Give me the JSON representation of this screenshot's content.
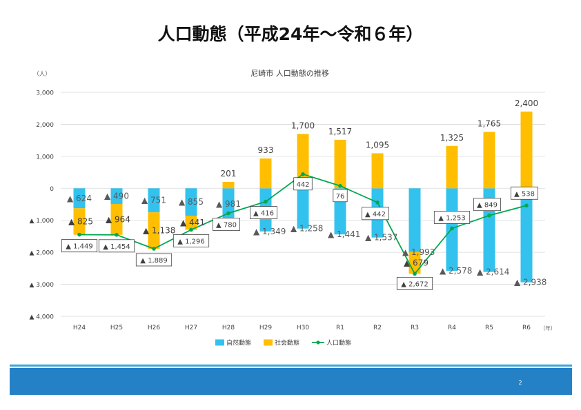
{
  "slide": {
    "title": "人口動態（平成24年～令和６年）",
    "page_number": "2"
  },
  "colors": {
    "natural": "#33c2ee",
    "social": "#ffbf00",
    "total": "#00a84f",
    "grid": "#d9d9d9",
    "footer": "#2481c6"
  },
  "chart_data": {
    "type": "bar",
    "title": "尼崎市 人口動態の推移",
    "ylabel": "（人）",
    "xlabel": "（年）",
    "ylim": [
      -4000,
      3000
    ],
    "yticks": [
      3000,
      2000,
      1000,
      0,
      -1000,
      -2000,
      -3000,
      -4000
    ],
    "ytick_labels": [
      "3,000",
      "2,000",
      "1,000",
      "0",
      "▲ 1,000",
      "▲ 2,000",
      "▲ 3,000",
      "▲ 4,000"
    ],
    "grid": true,
    "legend_position": "bottom",
    "categories": [
      "H24",
      "H25",
      "H26",
      "H27",
      "H28",
      "H29",
      "H30",
      "R1",
      "R2",
      "R3",
      "R4",
      "R5",
      "R6"
    ],
    "series": [
      {
        "name": "自然動態",
        "type": "bar",
        "values": [
          -624,
          -490,
          -751,
          -855,
          -981,
          -1349,
          -1258,
          -1441,
          -1537,
          -1993,
          -2578,
          -2614,
          -2938
        ],
        "labels": [
          "▲ 624",
          "▲ 490",
          "▲ 751",
          "▲ 855",
          "▲ 981",
          "▲ 1,349",
          "▲ 1,258",
          "▲ 1,441",
          "▲ 1,537",
          "▲ 1,993",
          "▲ 2,578",
          "▲ 2,614",
          "▲ 2,938"
        ]
      },
      {
        "name": "社会動態",
        "type": "bar",
        "values": [
          -825,
          -964,
          -1138,
          -441,
          201,
          933,
          1700,
          1517,
          1095,
          -679,
          1325,
          1765,
          2400
        ],
        "labels": [
          "▲ 825",
          "▲ 964",
          "▲ 1,138",
          "▲ 441",
          "201",
          "933",
          "1,700",
          "1,517",
          "1,095",
          "▲ 679",
          "1,325",
          "1,765",
          "2,400"
        ]
      },
      {
        "name": "人口動態",
        "type": "line",
        "values": [
          -1449,
          -1454,
          -1889,
          -1296,
          -780,
          -416,
          442,
          76,
          -442,
          -2672,
          -1253,
          -849,
          -538
        ],
        "labels": [
          "▲ 1,449",
          "▲ 1,454",
          "▲ 1,889",
          "▲ 1,296",
          "▲ 780",
          "▲ 416",
          "442",
          "76",
          "▲ 442",
          "▲ 2,672",
          "▲ 1,253",
          "▲ 849",
          "▲ 538"
        ]
      }
    ]
  }
}
